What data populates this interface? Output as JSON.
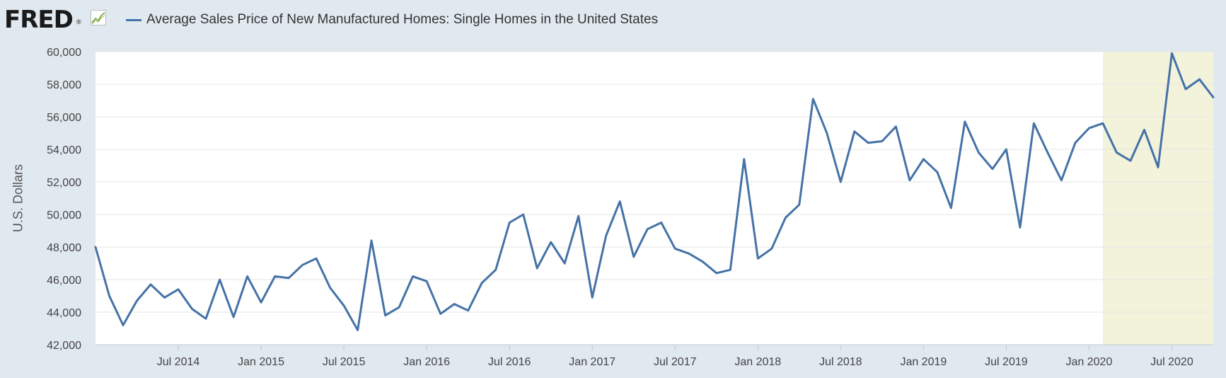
{
  "header": {
    "logo": "FRED",
    "logo_mark": "®",
    "logo_icon": "line-chart-icon",
    "title": "Average Sales Price of New Manufactured Homes: Single Homes in the United States"
  },
  "colors": {
    "series": "#4572a7",
    "recession_shade": "#f3f3dc",
    "background": "#e1e9f0",
    "plot_background": "#ffffff",
    "grid": "#e6e6e6"
  },
  "chart_data": {
    "type": "line",
    "title": "Average Sales Price of New Manufactured Homes: Single Homes in the United States",
    "xlabel": "",
    "ylabel": "U.S. Dollars",
    "ylim": [
      42000,
      60000
    ],
    "yticks": [
      42000,
      44000,
      46000,
      48000,
      50000,
      52000,
      54000,
      56000,
      58000,
      60000
    ],
    "ytick_labels": [
      "42,000",
      "44,000",
      "46,000",
      "48,000",
      "50,000",
      "52,000",
      "54,000",
      "56,000",
      "58,000",
      "60,000"
    ],
    "xticks": [
      "2014-07",
      "2015-01",
      "2015-07",
      "2016-01",
      "2016-07",
      "2017-01",
      "2017-07",
      "2018-01",
      "2018-07",
      "2019-01",
      "2019-07",
      "2020-01",
      "2020-07"
    ],
    "xtick_labels": [
      "Jul 2014",
      "Jan 2015",
      "Jul 2015",
      "Jan 2016",
      "Jul 2016",
      "Jan 2017",
      "Jul 2017",
      "Jan 2018",
      "Jul 2018",
      "Jan 2019",
      "Jul 2019",
      "Jan 2020",
      "Jul 2020"
    ],
    "xlim": [
      "2014-01",
      "2020-10"
    ],
    "grid": true,
    "legend": "top-left",
    "shaded_regions": [
      {
        "start": "2020-02",
        "end": "2020-10"
      }
    ],
    "series": [
      {
        "name": "Average Sales Price of New Manufactured Homes: Single Homes in the United States",
        "x": [
          "2014-01",
          "2014-02",
          "2014-03",
          "2014-04",
          "2014-05",
          "2014-06",
          "2014-07",
          "2014-08",
          "2014-09",
          "2014-10",
          "2014-11",
          "2014-12",
          "2015-01",
          "2015-02",
          "2015-03",
          "2015-04",
          "2015-05",
          "2015-06",
          "2015-07",
          "2015-08",
          "2015-09",
          "2015-10",
          "2015-11",
          "2015-12",
          "2016-01",
          "2016-02",
          "2016-03",
          "2016-04",
          "2016-05",
          "2016-06",
          "2016-07",
          "2016-08",
          "2016-09",
          "2016-10",
          "2016-11",
          "2016-12",
          "2017-01",
          "2017-02",
          "2017-03",
          "2017-04",
          "2017-05",
          "2017-06",
          "2017-07",
          "2017-08",
          "2017-09",
          "2017-10",
          "2017-11",
          "2017-12",
          "2018-01",
          "2018-02",
          "2018-03",
          "2018-04",
          "2018-05",
          "2018-06",
          "2018-07",
          "2018-08",
          "2018-09",
          "2018-10",
          "2018-11",
          "2018-12",
          "2019-01",
          "2019-02",
          "2019-03",
          "2019-04",
          "2019-05",
          "2019-06",
          "2019-07",
          "2019-08",
          "2019-09",
          "2019-10",
          "2019-11",
          "2019-12",
          "2020-01",
          "2020-02",
          "2020-03",
          "2020-04",
          "2020-05",
          "2020-06",
          "2020-07",
          "2020-08",
          "2020-09",
          "2020-10"
        ],
        "values": [
          48000,
          45000,
          43200,
          44700,
          45700,
          44900,
          45400,
          44200,
          43600,
          46000,
          43700,
          46200,
          44600,
          46200,
          46100,
          46900,
          47300,
          45500,
          44400,
          42900,
          48400,
          43800,
          44300,
          46200,
          45900,
          43900,
          44500,
          44100,
          45800,
          46600,
          49500,
          50000,
          46700,
          48300,
          47000,
          49900,
          44900,
          48700,
          50800,
          47400,
          49100,
          49500,
          47900,
          47600,
          47100,
          46400,
          46600,
          53400,
          47300,
          47900,
          49800,
          50600,
          57100,
          55000,
          52000,
          55100,
          54400,
          54500,
          55400,
          52100,
          53400,
          52600,
          50400,
          55700,
          53800,
          52800,
          54000,
          49200,
          55600,
          53800,
          52100,
          54400,
          55300,
          55600,
          53800,
          53300,
          55200,
          52900,
          59900,
          57700,
          58300,
          57200
        ]
      }
    ]
  }
}
